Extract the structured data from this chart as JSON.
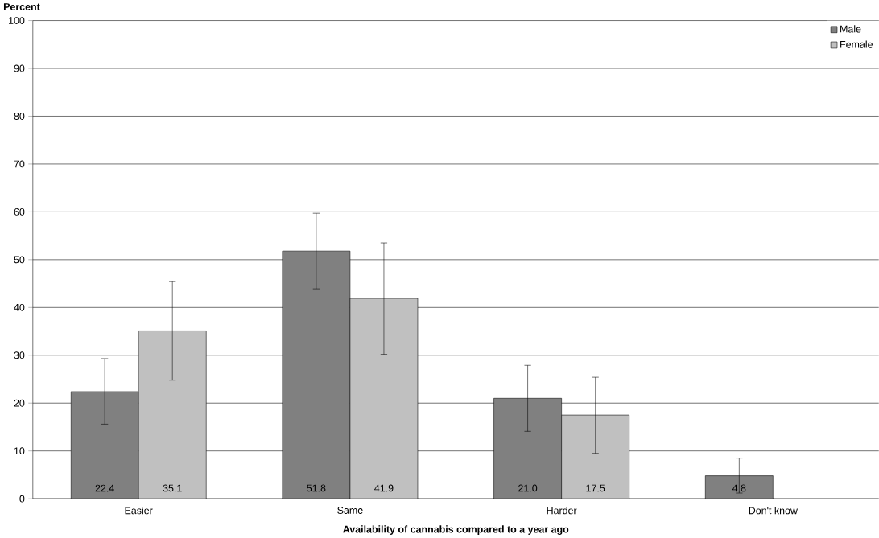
{
  "chart_data": {
    "type": "bar",
    "xlabel": "Availability of cannabis compared to a year ago",
    "ylabel": "Percent",
    "categories": [
      "Easier",
      "Same",
      "Harder",
      "Don't know"
    ],
    "series": [
      {
        "name": "Male",
        "color": "#808080",
        "values": [
          22.4,
          51.8,
          21.0,
          4.8
        ],
        "value_labels": [
          "22.4",
          "51.8",
          "21.0",
          "4.8"
        ],
        "errors": [
          [
            15.6,
            29.3
          ],
          [
            43.9,
            59.7
          ],
          [
            14.1,
            27.9
          ],
          [
            1.2,
            8.5
          ]
        ]
      },
      {
        "name": "Female",
        "color": "#c0c0c0",
        "values": [
          35.1,
          41.9,
          17.5,
          null
        ],
        "value_labels": [
          "35.1",
          "41.9",
          "17.5",
          null
        ],
        "errors": [
          [
            24.8,
            45.4
          ],
          [
            30.2,
            53.5
          ],
          [
            9.5,
            25.4
          ],
          null
        ]
      }
    ],
    "ylim": [
      0,
      100
    ],
    "yticks": [
      0,
      10,
      20,
      30,
      40,
      50,
      60,
      70,
      80,
      90,
      100
    ],
    "grid": "y",
    "legend": "top right"
  }
}
